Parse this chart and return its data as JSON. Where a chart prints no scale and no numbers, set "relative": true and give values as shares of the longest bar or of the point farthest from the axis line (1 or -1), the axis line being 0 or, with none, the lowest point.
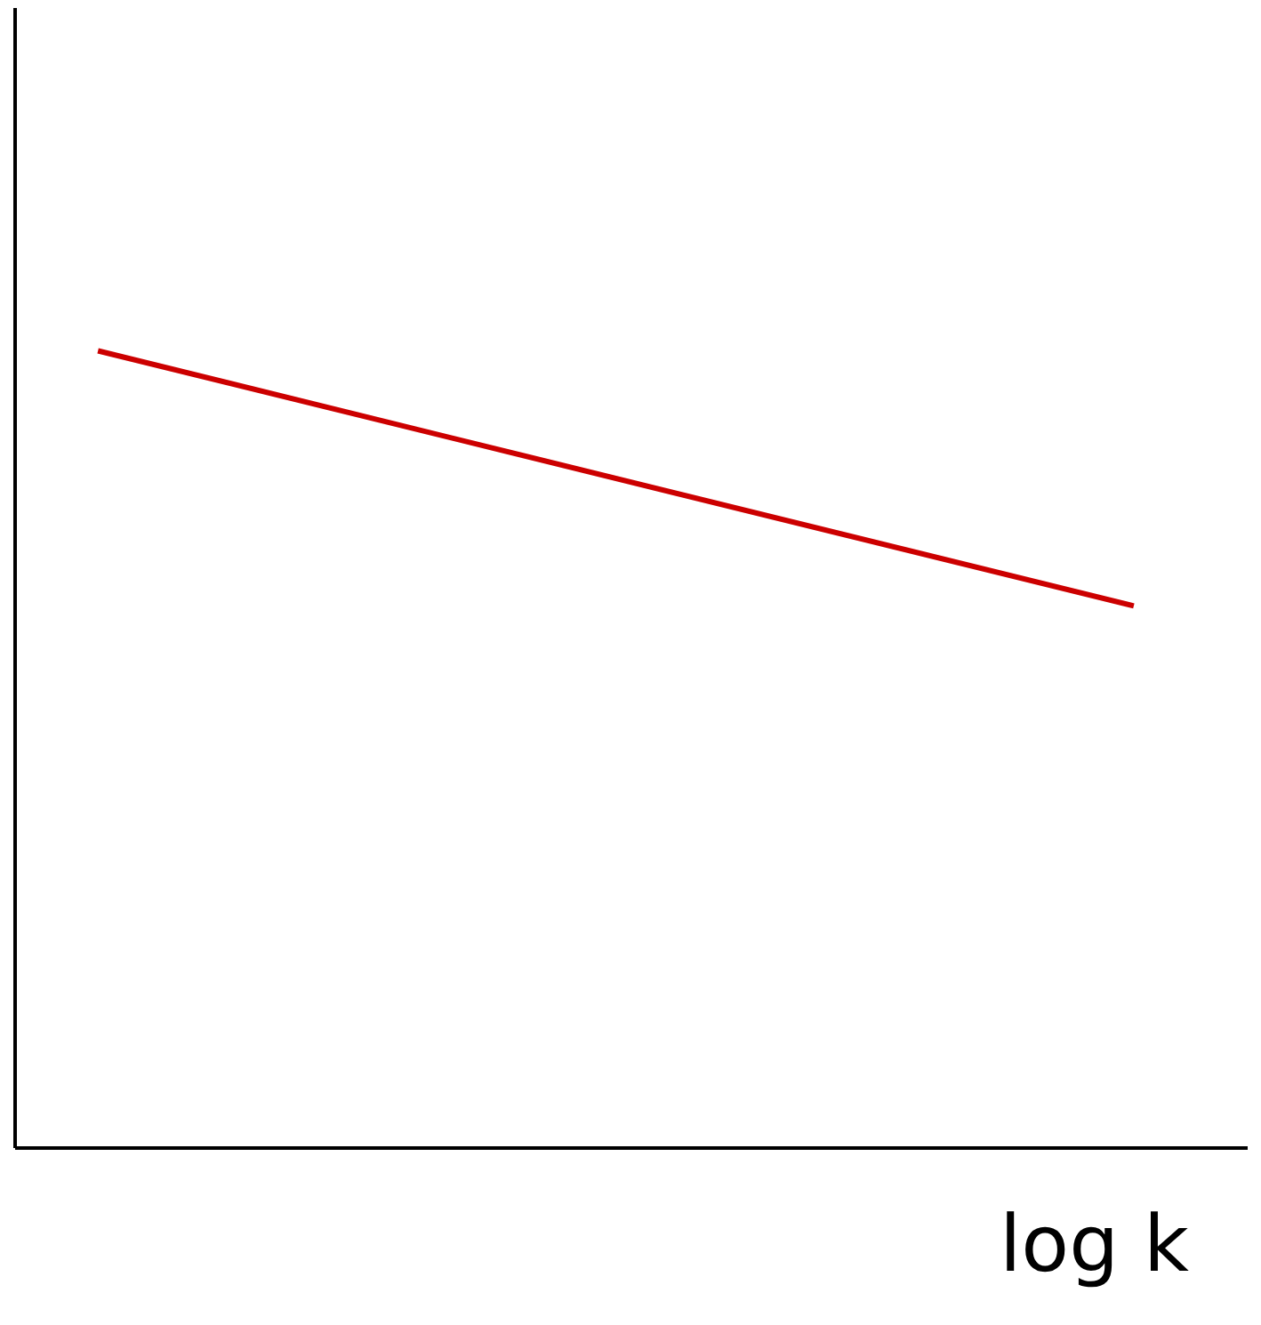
{
  "chart_data": {
    "type": "line",
    "relative": true,
    "xlabel": "log k",
    "categories": [
      null,
      null
    ],
    "series": [
      {
        "color": "#cc0000",
        "values": [
          1,
          0.68
        ]
      }
    ]
  }
}
